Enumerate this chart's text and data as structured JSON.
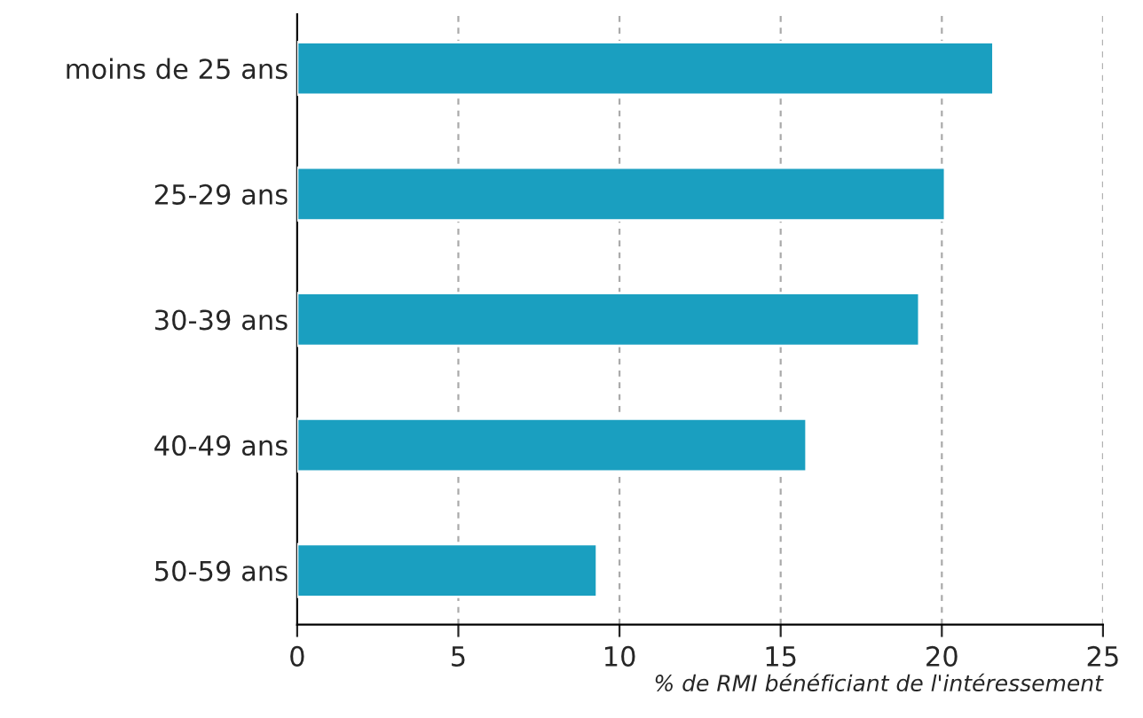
{
  "chart_data": {
    "type": "bar",
    "orientation": "horizontal",
    "categories": [
      "moins de 25 ans",
      "25-29 ans",
      "30-39 ans",
      "40-49 ans",
      "50-59 ans"
    ],
    "values": [
      21.6,
      20.1,
      19.3,
      15.8,
      9.3
    ],
    "color": "#1a9fc0",
    "xlabel": "% de RMI bénéficiant de l'intéressement",
    "xlim": [
      0,
      25
    ],
    "xticks": [
      0,
      5,
      10,
      15,
      20,
      25
    ],
    "grid": "x",
    "legend": false
  }
}
